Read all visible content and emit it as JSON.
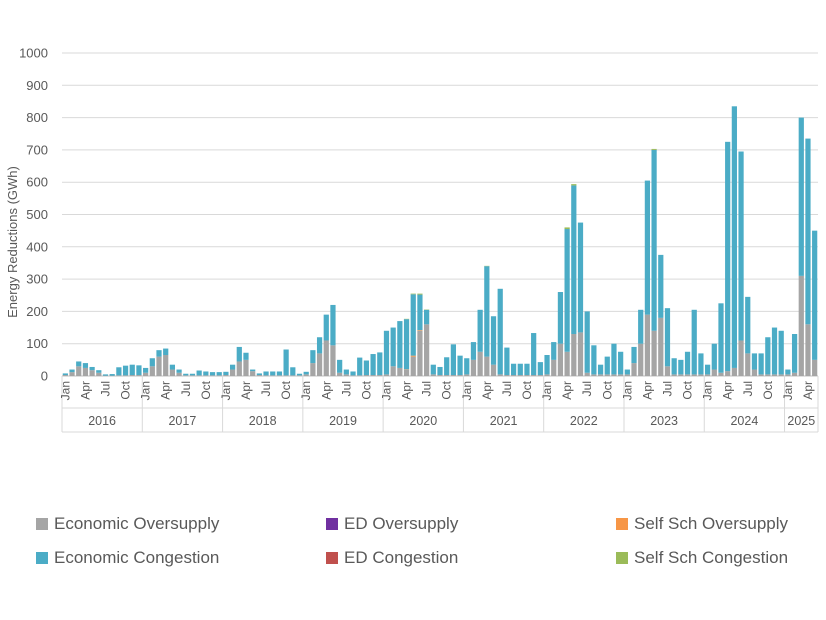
{
  "chart_data": {
    "type": "bar",
    "stacked": true,
    "ylabel": "Energy  Reductions  (GWh)",
    "ylim": [
      0,
      1000
    ],
    "yticks": [
      0,
      100,
      200,
      300,
      400,
      500,
      600,
      700,
      800,
      900,
      1000
    ],
    "grid": true,
    "legend_position": "bottom",
    "month_labels": [
      "Jan",
      "Apr",
      "Jul",
      "Oct"
    ],
    "years": [
      {
        "label": "2016",
        "months": 12
      },
      {
        "label": "2017",
        "months": 12
      },
      {
        "label": "2018",
        "months": 12
      },
      {
        "label": "2019",
        "months": 12
      },
      {
        "label": "2020",
        "months": 12
      },
      {
        "label": "2021",
        "months": 12
      },
      {
        "label": "2022",
        "months": 12
      },
      {
        "label": "2023",
        "months": 12
      },
      {
        "label": "2024",
        "months": 12
      },
      {
        "label": "2025",
        "months": 5
      }
    ],
    "series": [
      {
        "name": "Economic Oversupply",
        "color": "#a5a5a5",
        "values": [
          3,
          12,
          30,
          25,
          18,
          10,
          1,
          1,
          2,
          2,
          3,
          3,
          10,
          30,
          60,
          65,
          20,
          10,
          2,
          2,
          2,
          2,
          2,
          2,
          3,
          20,
          45,
          50,
          15,
          3,
          2,
          2,
          2,
          2,
          2,
          2,
          5,
          40,
          70,
          110,
          95,
          10,
          5,
          2,
          2,
          3,
          3,
          3,
          5,
          30,
          25,
          20,
          60,
          140,
          160,
          5,
          3,
          3,
          3,
          3,
          5,
          50,
          75,
          60,
          35,
          5,
          3,
          3,
          3,
          3,
          3,
          3,
          5,
          50,
          100,
          75,
          130,
          135,
          10,
          5,
          5,
          5,
          5,
          5,
          5,
          40,
          100,
          190,
          140,
          180,
          30,
          5,
          5,
          5,
          5,
          5,
          5,
          20,
          10,
          15,
          25,
          110,
          70,
          20,
          5,
          5,
          5,
          5,
          5,
          10,
          310,
          160,
          50
        ]
      },
      {
        "name": "ED Oversupply",
        "color": "#7030a0",
        "values": [
          0,
          0,
          0,
          0,
          0,
          0,
          0,
          0,
          0,
          0,
          0,
          0,
          0,
          0,
          0,
          0,
          0,
          0,
          0,
          0,
          0,
          0,
          0,
          0,
          0,
          0,
          0,
          0,
          0,
          0,
          0,
          0,
          0,
          0,
          0,
          0,
          0,
          0,
          0,
          0,
          0,
          0,
          0,
          0,
          0,
          0,
          0,
          0,
          0,
          0,
          0,
          0,
          0,
          0,
          0,
          0,
          0,
          0,
          0,
          0,
          0,
          0,
          0,
          0,
          0,
          0,
          0,
          0,
          0,
          0,
          0,
          0,
          0,
          0,
          0,
          0,
          0,
          0,
          0,
          0,
          0,
          0,
          0,
          0,
          0,
          0,
          0,
          0,
          0,
          0,
          0,
          0,
          0,
          0,
          0,
          0,
          0,
          0,
          0,
          0,
          0,
          0,
          0,
          0,
          0,
          0,
          0,
          0,
          0,
          0,
          0,
          0,
          0
        ]
      },
      {
        "name": "Self Sch Oversupply",
        "color": "#f79646",
        "values": [
          0,
          0,
          0,
          0,
          0,
          0,
          0,
          0,
          0,
          0,
          0,
          0,
          0,
          0,
          0,
          0,
          0,
          0,
          0,
          0,
          0,
          0,
          0,
          0,
          0,
          0,
          0,
          0,
          0,
          0,
          0,
          0,
          0,
          0,
          0,
          0,
          0,
          0,
          0,
          0,
          0,
          0,
          0,
          0,
          0,
          0,
          0,
          0,
          0,
          0,
          0,
          1,
          3,
          2,
          0,
          0,
          0,
          0,
          0,
          0,
          0,
          0,
          0,
          0,
          0,
          0,
          0,
          0,
          0,
          0,
          0,
          0,
          0,
          0,
          0,
          0,
          0,
          0,
          0,
          0,
          0,
          0,
          0,
          0,
          0,
          0,
          0,
          0,
          0,
          0,
          0,
          0,
          0,
          0,
          0,
          0,
          0,
          0,
          0,
          0,
          0,
          0,
          0,
          0,
          0,
          0,
          0,
          0,
          0,
          0,
          0,
          0,
          0
        ]
      },
      {
        "name": "Economic Congestion",
        "color": "#4bacc6",
        "values": [
          5,
          8,
          15,
          15,
          10,
          8,
          4,
          5,
          25,
          30,
          32,
          30,
          15,
          25,
          20,
          20,
          15,
          10,
          5,
          5,
          15,
          12,
          10,
          10,
          10,
          15,
          45,
          22,
          5,
          5,
          12,
          12,
          12,
          80,
          25,
          5,
          8,
          40,
          50,
          80,
          125,
          40,
          15,
          12,
          55,
          45,
          65,
          70,
          135,
          120,
          145,
          155,
          190,
          110,
          45,
          30,
          25,
          55,
          95,
          60,
          50,
          55,
          130,
          280,
          150,
          265,
          85,
          35,
          35,
          35,
          130,
          40,
          60,
          55,
          160,
          380,
          460,
          340,
          190,
          90,
          30,
          55,
          95,
          70,
          15,
          50,
          105,
          415,
          560,
          195,
          180,
          50,
          45,
          70,
          200,
          65,
          30,
          80,
          215,
          710,
          810,
          585,
          175,
          50,
          65,
          115,
          145,
          135,
          15,
          120,
          490,
          575,
          400
        ]
      },
      {
        "name": "ED Congestion",
        "color": "#c0504d",
        "values": [
          0,
          0,
          0,
          0,
          0,
          0,
          0,
          0,
          0,
          0,
          0,
          0,
          0,
          0,
          0,
          0,
          0,
          0,
          0,
          0,
          0,
          0,
          0,
          0,
          0,
          0,
          0,
          0,
          0,
          0,
          0,
          0,
          0,
          0,
          0,
          0,
          0,
          0,
          0,
          0,
          0,
          0,
          0,
          0,
          0,
          0,
          0,
          0,
          0,
          0,
          0,
          0,
          0,
          0,
          0,
          0,
          0,
          0,
          0,
          0,
          0,
          0,
          0,
          0,
          0,
          0,
          0,
          0,
          0,
          0,
          0,
          0,
          0,
          0,
          0,
          0,
          0,
          0,
          0,
          0,
          0,
          0,
          0,
          0,
          0,
          0,
          0,
          0,
          0,
          0,
          0,
          0,
          0,
          0,
          0,
          0,
          0,
          0,
          0,
          0,
          0,
          0,
          0,
          0,
          0,
          0,
          0,
          0,
          0,
          0,
          0,
          0,
          0
        ]
      },
      {
        "name": "Self Sch Congestion",
        "color": "#9bbb59",
        "values": [
          0,
          0,
          0,
          0,
          0,
          0,
          0,
          0,
          0,
          0,
          0,
          0,
          0,
          0,
          0,
          0,
          0,
          0,
          0,
          0,
          0,
          0,
          0,
          0,
          0,
          0,
          0,
          0,
          0,
          0,
          0,
          0,
          0,
          0,
          0,
          0,
          0,
          0,
          0,
          0,
          0,
          0,
          0,
          0,
          0,
          0,
          0,
          0,
          0,
          0,
          0,
          1,
          2,
          3,
          1,
          0,
          0,
          0,
          0,
          0,
          0,
          0,
          0,
          1,
          0,
          0,
          0,
          0,
          0,
          0,
          0,
          0,
          0,
          0,
          0,
          5,
          4,
          0,
          0,
          0,
          0,
          0,
          0,
          0,
          0,
          0,
          0,
          0,
          3,
          0,
          0,
          0,
          0,
          0,
          0,
          0,
          0,
          0,
          0,
          0,
          0,
          0,
          0,
          0,
          0,
          0,
          0,
          0,
          0,
          0,
          0,
          0,
          0
        ]
      }
    ]
  }
}
